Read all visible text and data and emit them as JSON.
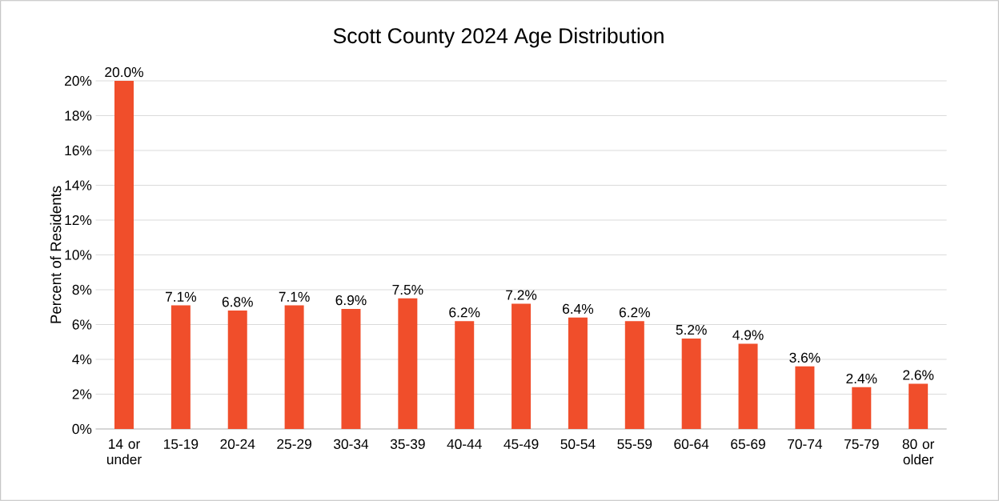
{
  "chart_data": {
    "type": "bar",
    "title": "Scott County 2024 Age Distribution",
    "ylabel": "Percent of Residents",
    "categories": [
      "14 or under",
      "15-19",
      "20-24",
      "25-29",
      "30-34",
      "35-39",
      "40-44",
      "45-49",
      "50-54",
      "55-59",
      "60-64",
      "65-69",
      "70-74",
      "75-79",
      "80 or older"
    ],
    "values": [
      20.0,
      7.1,
      6.8,
      7.1,
      6.9,
      7.5,
      6.2,
      7.2,
      6.4,
      6.2,
      5.2,
      4.9,
      3.6,
      2.4,
      2.6
    ],
    "value_labels": [
      "20.0%",
      "7.1%",
      "6.8%",
      "7.1%",
      "6.9%",
      "7.5%",
      "6.2%",
      "7.2%",
      "6.4%",
      "6.2%",
      "5.2%",
      "4.9%",
      "3.6%",
      "2.4%",
      "2.6%"
    ],
    "color": "#f04e2b",
    "ylim": [
      0,
      20
    ],
    "yticks": [
      {
        "value": 0,
        "label": "0%"
      },
      {
        "value": 2,
        "label": "2%"
      },
      {
        "value": 4,
        "label": "4%"
      },
      {
        "value": 6,
        "label": "6%"
      },
      {
        "value": 8,
        "label": "8%"
      },
      {
        "value": 10,
        "label": "10%"
      },
      {
        "value": 12,
        "label": "12%"
      },
      {
        "value": 14,
        "label": "14%"
      },
      {
        "value": 16,
        "label": "16%"
      },
      {
        "value": 18,
        "label": "18%"
      },
      {
        "value": 20,
        "label": "20%"
      }
    ],
    "grid": "y",
    "legend": false
  }
}
